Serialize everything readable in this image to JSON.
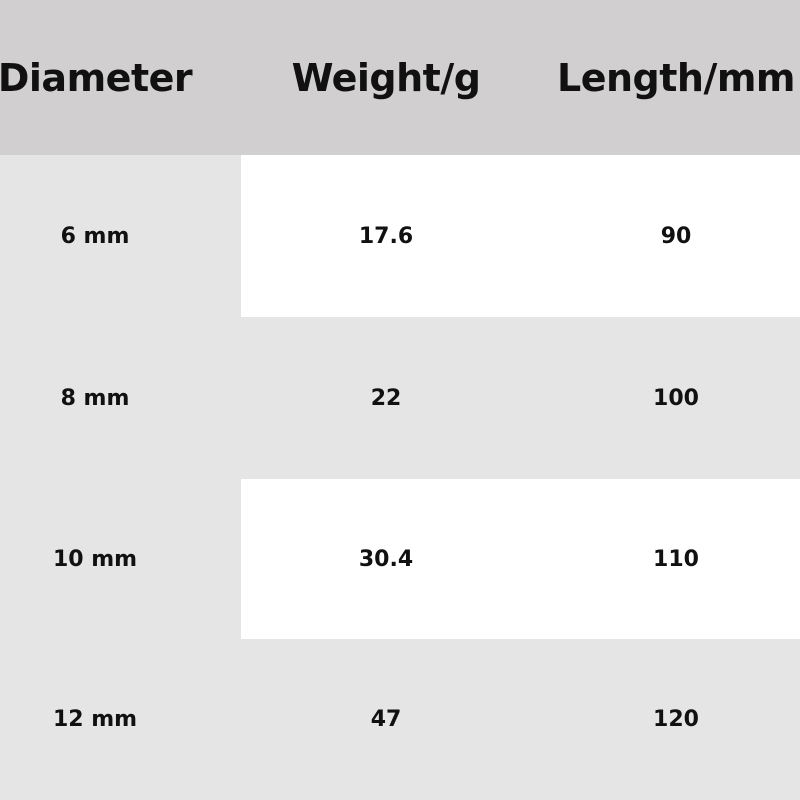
{
  "table": {
    "headers": [
      "Diameter",
      "Weight/g",
      "Length/mm"
    ],
    "rows": [
      [
        "6 mm",
        "17.6",
        "90"
      ],
      [
        "8 mm",
        "22",
        "100"
      ],
      [
        "10 mm",
        "30.4",
        "110"
      ],
      [
        "12 mm",
        "47",
        "120"
      ]
    ]
  },
  "colors": {
    "header_bg": "#d1cfd0",
    "row_gray": "#e6e5e5",
    "row_white": "#ffffff",
    "text": "#111111"
  }
}
